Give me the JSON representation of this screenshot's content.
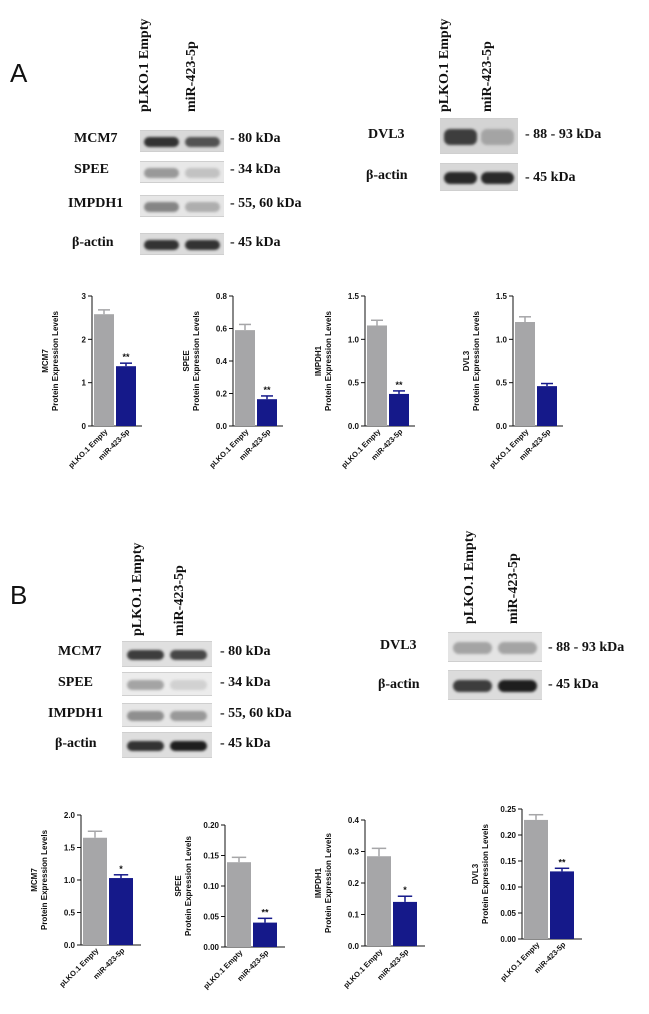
{
  "panels": [
    {
      "letter": "A",
      "blot_left": {
        "lanes": [
          "pLKO.1 Empty",
          "miR-423-5p"
        ],
        "rows": [
          {
            "label": "MCM7",
            "kda": "- 80 kDa",
            "intensity": [
              0.85,
              0.7
            ],
            "bg": "#d9d9d9"
          },
          {
            "label": "SPEE",
            "kda": "- 34 kDa",
            "intensity": [
              0.35,
              0.15
            ],
            "bg": "#e8e8e8"
          },
          {
            "label": "IMPDH1",
            "kda": "- 55, 60 kDa",
            "intensity": [
              0.45,
              0.25
            ],
            "bg": "#e6e6e6"
          },
          {
            "label": "β-actin",
            "kda": "- 45 kDa",
            "intensity": [
              0.85,
              0.85
            ],
            "bg": "#dcdcdc"
          }
        ]
      },
      "blot_right": {
        "lanes": [
          "pLKO.1 Empty",
          "miR-423-5p"
        ],
        "rows": [
          {
            "label": "DVL3",
            "kda": "- 88 - 93 kDa",
            "intensity": [
              0.8,
              0.3
            ],
            "bg": "#d4d4d4"
          },
          {
            "label": "β-actin",
            "kda": "- 45 kDa",
            "intensity": [
              0.9,
              0.9
            ],
            "bg": "#d8d8d8"
          }
        ]
      }
    },
    {
      "letter": "B",
      "blot_left": {
        "lanes": [
          "pLKO.1 Empty",
          "miR-423-5p"
        ],
        "rows": [
          {
            "label": "MCM7",
            "kda": "- 80 kDa",
            "intensity": [
              0.8,
              0.75
            ],
            "bg": "#e0e0e0"
          },
          {
            "label": "SPEE",
            "kda": "- 34 kDa",
            "intensity": [
              0.3,
              0.08
            ],
            "bg": "#ececec"
          },
          {
            "label": "IMPDH1",
            "kda": "- 55, 60 kDa",
            "intensity": [
              0.4,
              0.35
            ],
            "bg": "#e6e6e6"
          },
          {
            "label": "β-actin",
            "kda": "- 45 kDa",
            "intensity": [
              0.85,
              0.95
            ],
            "bg": "#dedede"
          }
        ]
      },
      "blot_right": {
        "lanes": [
          "pLKO.1 Empty",
          "miR-423-5p"
        ],
        "rows": [
          {
            "label": "DVL3",
            "kda": "- 88 - 93 kDa",
            "intensity": [
              0.3,
              0.3
            ],
            "bg": "#e4e4e4"
          },
          {
            "label": "β-actin",
            "kda": "- 45 kDa",
            "intensity": [
              0.8,
              0.95
            ],
            "bg": "#dcdcdc"
          }
        ]
      }
    }
  ],
  "colors": {
    "control": "#a6a6a8",
    "treated": "#15198a"
  },
  "chart_data": [
    {
      "type": "bar",
      "ylabel_protein": "MCM7",
      "ylabel": "Protein Expression Levels",
      "categories": [
        "pLKO.1 Empty",
        "miR-423-5p"
      ],
      "values": [
        2.58,
        1.38
      ],
      "errors": [
        0.1,
        0.07
      ],
      "ylim": [
        0,
        3
      ],
      "yticks": [
        "0",
        "1",
        "2",
        "3"
      ],
      "yvals": [
        0,
        1,
        2,
        3
      ],
      "significance": [
        "",
        "**"
      ]
    },
    {
      "type": "bar",
      "ylabel_protein": "SPEE",
      "ylabel": "Protein Expression Levels",
      "categories": [
        "pLKO.1 Empty",
        "miR-423-5p"
      ],
      "values": [
        0.59,
        0.165
      ],
      "errors": [
        0.035,
        0.02
      ],
      "ylim": [
        0,
        0.8
      ],
      "yticks": [
        "0.0",
        "0.2",
        "0.4",
        "0.6",
        "0.8"
      ],
      "yvals": [
        0,
        0.2,
        0.4,
        0.6,
        0.8
      ],
      "significance": [
        "",
        "**"
      ]
    },
    {
      "type": "bar",
      "ylabel_protein": "IMPDH1",
      "ylabel": "Protein Expression Levels",
      "categories": [
        "pLKO.1 Empty",
        "miR-423-5p"
      ],
      "values": [
        1.16,
        0.37
      ],
      "errors": [
        0.06,
        0.035
      ],
      "ylim": [
        0,
        1.5
      ],
      "yticks": [
        "0.0",
        "0.5",
        "1.0",
        "1.5"
      ],
      "yvals": [
        0,
        0.5,
        1.0,
        1.5
      ],
      "significance": [
        "",
        "**"
      ]
    },
    {
      "type": "bar",
      "ylabel_protein": "DVL3",
      "ylabel": "Protein Expression Levels",
      "categories": [
        "pLKO.1 Empty",
        "miR-423-5p"
      ],
      "values": [
        1.2,
        0.46
      ],
      "errors": [
        0.06,
        0.03
      ],
      "ylim": [
        0,
        1.5
      ],
      "yticks": [
        "0.0",
        "0.5",
        "1.0",
        "1.5"
      ],
      "yvals": [
        0,
        0.5,
        1.0,
        1.5
      ],
      "significance": [
        "",
        ""
      ]
    },
    {
      "type": "bar",
      "ylabel_protein": "MCM7",
      "ylabel": "Protein Expression Levels",
      "categories": [
        "pLKO.1 Empty",
        "miR-423-5p"
      ],
      "values": [
        1.65,
        1.03
      ],
      "errors": [
        0.1,
        0.05
      ],
      "ylim": [
        0,
        2.0
      ],
      "yticks": [
        "0.0",
        "0.5",
        "1.0",
        "1.5",
        "2.0"
      ],
      "yvals": [
        0,
        0.5,
        1.0,
        1.5,
        2.0
      ],
      "significance": [
        "",
        "*"
      ]
    },
    {
      "type": "bar",
      "ylabel_protein": "SPEE",
      "ylabel": "Protein Expression Levels",
      "categories": [
        "pLKO.1 Empty",
        "miR-423-5p"
      ],
      "values": [
        0.139,
        0.04
      ],
      "errors": [
        0.008,
        0.007
      ],
      "ylim": [
        0,
        0.2
      ],
      "yticks": [
        "0.00",
        "0.05",
        "0.10",
        "0.15",
        "0.20"
      ],
      "yvals": [
        0,
        0.05,
        0.1,
        0.15,
        0.2
      ],
      "significance": [
        "",
        "**"
      ]
    },
    {
      "type": "bar",
      "ylabel_protein": "IMPDH1",
      "ylabel": "Protein Expression Levels",
      "categories": [
        "pLKO.1 Empty",
        "miR-423-5p"
      ],
      "values": [
        0.285,
        0.14
      ],
      "errors": [
        0.025,
        0.018
      ],
      "ylim": [
        0,
        0.4
      ],
      "yticks": [
        "0.0",
        "0.1",
        "0.2",
        "0.3",
        "0.4"
      ],
      "yvals": [
        0,
        0.1,
        0.2,
        0.3,
        0.4
      ],
      "significance": [
        "",
        "*"
      ]
    },
    {
      "type": "bar",
      "ylabel_protein": "DVL3",
      "ylabel": "Protein Expression Levels",
      "categories": [
        "pLKO.1 Empty",
        "miR-423-5p"
      ],
      "values": [
        0.229,
        0.13
      ],
      "errors": [
        0.01,
        0.006
      ],
      "ylim": [
        0,
        0.25
      ],
      "yticks": [
        "0.00",
        "0.05",
        "0.10",
        "0.15",
        "0.20",
        "0.25"
      ],
      "yvals": [
        0,
        0.05,
        0.1,
        0.15,
        0.2,
        0.25
      ],
      "significance": [
        "",
        "**"
      ]
    }
  ]
}
